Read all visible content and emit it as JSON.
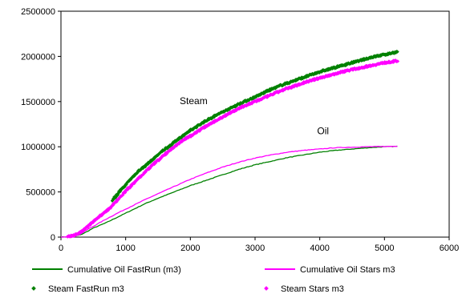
{
  "chart_data": {
    "type": "line",
    "title": "",
    "xlabel": "",
    "ylabel": "",
    "xlim": [
      0,
      6000
    ],
    "ylim": [
      0,
      2500000
    ],
    "xticks": [
      0,
      1000,
      2000,
      3000,
      4000,
      5000,
      6000
    ],
    "yticks": [
      0,
      500000,
      1000000,
      1500000,
      2000000,
      2500000
    ],
    "xtick_labels": [
      "0",
      "1000",
      "2000",
      "3000",
      "4000",
      "5000",
      "6000"
    ],
    "ytick_labels": [
      "0",
      "500000",
      "1000000",
      "1500000",
      "2000000",
      "2500000"
    ],
    "grid": false,
    "legend_position": "bottom",
    "annotations": [
      {
        "text": "Steam",
        "x": 2050,
        "y": 1470000
      },
      {
        "text": "Oil",
        "x": 4050,
        "y": 1140000
      }
    ],
    "series": [
      {
        "name": "Cumulative Oil FastRun (m3)",
        "style": "line",
        "color": "#008000",
        "x": [
          0,
          200,
          300,
          400,
          500,
          700,
          900,
          1100,
          1300,
          1500,
          1750,
          2000,
          2250,
          2500,
          2750,
          3000,
          3250,
          3500,
          3750,
          4000,
          4250,
          4500,
          4750,
          5000,
          5200
        ],
        "y": [
          0,
          10000,
          25000,
          60000,
          100000,
          160000,
          230000,
          300000,
          370000,
          430000,
          500000,
          570000,
          630000,
          690000,
          750000,
          800000,
          840000,
          880000,
          910000,
          940000,
          960000,
          975000,
          990000,
          1000000,
          1005000
        ]
      },
      {
        "name": "Cumulative Oil Stars m3",
        "style": "line",
        "color": "#ff00ff",
        "x": [
          0,
          200,
          300,
          400,
          500,
          700,
          900,
          1100,
          1300,
          1500,
          1750,
          2000,
          2250,
          2500,
          2750,
          3000,
          3250,
          3500,
          3750,
          4000,
          4250,
          4500,
          4750,
          5000,
          5200
        ],
        "y": [
          0,
          15000,
          35000,
          80000,
          120000,
          200000,
          275000,
          345000,
          415000,
          480000,
          560000,
          640000,
          710000,
          775000,
          830000,
          875000,
          910000,
          940000,
          960000,
          975000,
          990000,
          995000,
          1000000,
          1003000,
          1005000
        ]
      },
      {
        "name": "Steam FastRun m3",
        "style": "markers",
        "color": "#008000",
        "x": [
          800,
          900,
          1000,
          1100,
          1200,
          1300,
          1400,
          1500,
          1600,
          1700,
          1800,
          1900,
          2000,
          2200,
          2400,
          2600,
          2800,
          3000,
          3200,
          3400,
          3600,
          3800,
          4000,
          4200,
          4400,
          4600,
          4800,
          5000,
          5200
        ],
        "y": [
          410000,
          500000,
          580000,
          660000,
          730000,
          790000,
          850000,
          910000,
          970000,
          1020000,
          1080000,
          1130000,
          1180000,
          1270000,
          1350000,
          1420000,
          1490000,
          1550000,
          1620000,
          1680000,
          1730000,
          1780000,
          1830000,
          1870000,
          1910000,
          1950000,
          1990000,
          2020000,
          2050000
        ]
      },
      {
        "name": "Steam Stars m3",
        "style": "markers",
        "color": "#ff00ff",
        "x": [
          100,
          200,
          300,
          400,
          500,
          600,
          700,
          800,
          900,
          1000,
          1100,
          1200,
          1300,
          1400,
          1500,
          1600,
          1700,
          1800,
          1900,
          2000,
          2200,
          2400,
          2600,
          2800,
          3000,
          3200,
          3400,
          3600,
          3800,
          4000,
          4200,
          4400,
          4600,
          4800,
          5000,
          5200
        ],
        "y": [
          0,
          20000,
          50000,
          110000,
          170000,
          230000,
          290000,
          350000,
          430000,
          510000,
          580000,
          650000,
          720000,
          790000,
          850000,
          910000,
          970000,
          1030000,
          1080000,
          1120000,
          1210000,
          1290000,
          1370000,
          1440000,
          1500000,
          1560000,
          1620000,
          1670000,
          1720000,
          1760000,
          1800000,
          1840000,
          1870000,
          1900000,
          1930000,
          1950000
        ]
      }
    ]
  }
}
